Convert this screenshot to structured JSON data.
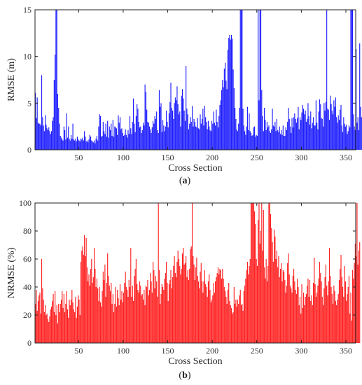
{
  "chart_data": [
    {
      "type": "bar",
      "panel_label": "(a)",
      "xlabel": "Cross Section",
      "ylabel": "RMSE (m)",
      "xlim": [
        1,
        360
      ],
      "ylim": [
        0,
        15
      ],
      "xticks": [
        50,
        100,
        150,
        200,
        250,
        300,
        350
      ],
      "yticks": [
        0,
        5,
        10,
        15
      ],
      "grid": false,
      "color": "#1f1fff",
      "x_start": 1,
      "values": [
        6.1,
        3.4,
        5.6,
        2.9,
        2.8,
        2.8,
        2.6,
        8.0,
        3.5,
        2.6,
        2.0,
        3.7,
        2.7,
        2.3,
        2.1,
        2.4,
        2.0,
        1.7,
        2.0,
        3.1,
        3.5,
        7.5,
        10.2,
        15.0,
        15.0,
        6.0,
        4.5,
        2.8,
        1.5,
        1.3,
        1.1,
        1.0,
        2.5,
        2.1,
        1.1,
        3.9,
        1.3,
        2.5,
        1.2,
        1.0,
        1.6,
        1.2,
        2.8,
        1.1,
        1.0,
        1.2,
        0.9,
        1.4,
        1.1,
        1.0,
        0.9,
        1.2,
        1.1,
        1.3,
        1.0,
        2.0,
        1.4,
        0.9,
        1.0,
        0.8,
        1.1,
        1.6,
        1.4,
        1.0,
        0.9,
        0.8,
        1.0,
        0.7,
        1.2,
        1.5,
        1.0,
        2.5,
        3.8,
        3.6,
        1.4,
        1.5,
        3.0,
        2.0,
        1.7,
        2.8,
        1.4,
        3.1,
        1.3,
        2.5,
        2.1,
        2.8,
        1.5,
        3.2,
        1.4,
        2.5,
        2.4,
        2.3,
        1.6,
        3.7,
        2.9,
        3.5,
        2.2,
        2.3,
        1.8,
        1.5,
        1.6,
        2.2,
        1.6,
        1.3,
        2.1,
        1.7,
        3.6,
        2.3,
        1.7,
        3.0,
        5.5,
        2.8,
        1.9,
        3.6,
        4.9,
        4.4,
        3.0,
        2.4,
        2.5,
        1.8,
        2.1,
        2.9,
        2.6,
        7.0,
        6.2,
        4.3,
        3.0,
        2.9,
        2.5,
        2.2,
        1.8,
        2.4,
        3.1,
        2.8,
        3.6,
        3.3,
        4.1,
        2.1,
        1.8,
        6.4,
        4.6,
        5.0,
        1.9,
        3.2,
        2.6,
        2.0,
        2.5,
        4.2,
        3.0,
        2.4,
        3.9,
        5.1,
        7.2,
        4.5,
        4.2,
        3.3,
        5.0,
        5.6,
        5.3,
        6.8,
        4.9,
        3.8,
        4.1,
        2.5,
        5.8,
        6.5,
        5.5,
        4.2,
        3.1,
        9.0,
        4.4,
        3.8,
        2.2,
        2.8,
        3.5,
        3.0,
        4.7,
        2.5,
        3.3,
        3.0,
        2.5,
        2.4,
        3.4,
        2.3,
        2.2,
        3.8,
        2.8,
        3.3,
        4.4,
        2.6,
        4.7,
        3.5,
        3.0,
        2.2,
        3.1,
        2.5,
        2.1,
        2.0,
        3.1,
        2.8,
        4.1,
        2.9,
        2.6,
        4.3,
        3.0,
        2.4,
        3.6,
        4.8,
        5.3,
        6.4,
        7.5,
        6.7,
        8.7,
        9.3,
        7.4,
        6.5,
        10.7,
        12.0,
        12.3,
        11.8,
        12.3,
        11.9,
        8.6,
        6.6,
        4.5,
        3.3,
        2.2,
        2.0,
        2.8,
        4.5,
        15.0,
        15.0,
        15.0,
        4.4,
        2.6,
        2.0,
        1.6,
        2.5,
        4.6,
        2.1,
        3.9,
        2.0,
        1.8,
        1.5,
        1.6,
        2.4,
        2.5,
        1.4,
        1.6,
        1.5,
        15.0,
        5.3,
        15.0,
        15.0,
        6.4,
        3.6,
        2.0,
        4.5,
        3.2,
        2.1,
        3.0,
        2.4,
        2.6,
        2.0,
        1.8,
        2.2,
        4.4,
        2.6,
        2.5,
        3.0,
        2.0,
        3.3,
        2.1,
        1.9,
        2.5,
        1.7,
        2.1,
        1.6,
        2.6,
        1.5,
        1.5,
        2.4,
        2.1,
        3.0,
        4.5,
        3.3,
        2.5,
        1.8,
        3.4,
        2.4,
        3.5,
        3.9,
        3.3,
        2.9,
        3.4,
        4.6,
        2.2,
        3.5,
        3.2,
        4.0,
        4.8,
        4.4,
        3.8,
        4.2,
        3.0,
        3.3,
        5.0,
        3.6,
        2.7,
        4.1,
        2.3,
        2.9,
        3.5,
        2.6,
        2.6,
        5.3,
        2.9,
        2.2,
        4.1,
        5.4,
        4.9,
        3.4,
        3.3,
        2.5,
        5.0,
        4.2,
        5.1,
        15.0,
        4.4,
        4.3,
        3.2,
        5.8,
        4.9,
        4.2,
        3.8,
        5.3,
        4.6,
        5.6,
        3.5,
        2.9,
        3.7,
        3.2,
        4.3,
        4.8,
        2.6,
        1.9,
        3.5,
        2.8,
        2.5,
        2.7,
        1.7,
        2.0,
        2.6,
        2.4,
        15.0,
        15.0,
        15.0,
        3.8,
        2.5,
        2.1,
        10.8,
        2.9,
        3.5,
        2.1,
        11.4,
        4.6,
        3.5,
        3.0,
        2.9,
        3.6
      ]
    },
    {
      "type": "bar",
      "panel_label": "(b)",
      "xlabel": "Cross Section",
      "ylabel": "NRMSE (%)",
      "xlim": [
        1,
        360
      ],
      "ylim": [
        0,
        100
      ],
      "xticks": [
        50,
        100,
        150,
        200,
        250,
        300,
        350
      ],
      "yticks": [
        0,
        20,
        40,
        60,
        80,
        100
      ],
      "grid": false,
      "color": "#ff2222",
      "x_start": 1,
      "values": [
        28,
        38,
        23,
        30,
        34,
        36,
        21,
        60,
        39,
        31,
        22,
        27,
        20,
        21,
        17,
        15,
        19,
        24,
        26,
        30,
        35,
        22,
        37,
        20,
        27,
        14,
        28,
        22,
        28,
        31,
        37,
        25,
        35,
        22,
        28,
        37,
        24,
        18,
        31,
        27,
        31,
        38,
        29,
        24,
        22,
        33,
        18,
        26,
        34,
        31,
        20,
        58,
        66,
        69,
        63,
        77,
        62,
        75,
        54,
        44,
        49,
        41,
        53,
        60,
        43,
        47,
        68,
        53,
        40,
        46,
        39,
        30,
        40,
        29,
        26,
        37,
        51,
        45,
        56,
        33,
        43,
        64,
        48,
        41,
        37,
        43,
        28,
        35,
        22,
        28,
        40,
        26,
        38,
        32,
        27,
        42,
        31,
        37,
        29,
        36,
        43,
        51,
        40,
        38,
        33,
        45,
        40,
        68,
        33,
        41,
        30,
        48,
        53,
        60,
        42,
        38,
        36,
        44,
        41,
        34,
        35,
        31,
        38,
        27,
        41,
        40,
        45,
        34,
        38,
        50,
        44,
        36,
        58,
        52,
        39,
        48,
        44,
        33,
        100,
        52,
        28,
        35,
        42,
        40,
        38,
        46,
        50,
        58,
        43,
        30,
        42,
        45,
        52,
        39,
        47,
        55,
        62,
        50,
        47,
        58,
        66,
        60,
        55,
        49,
        53,
        64,
        68,
        56,
        57,
        62,
        47,
        52,
        45,
        53,
        67,
        69,
        100,
        62,
        56,
        45,
        54,
        61,
        48,
        44,
        39,
        51,
        57,
        44,
        36,
        44,
        52,
        42,
        40,
        33,
        44,
        49,
        38,
        29,
        31,
        34,
        43,
        36,
        44,
        47,
        50,
        54,
        49,
        53,
        52,
        46,
        53,
        46,
        40,
        37,
        33,
        28,
        38,
        43,
        30,
        27,
        25,
        21,
        22,
        40,
        28,
        31,
        26,
        31,
        28,
        34,
        38,
        27,
        28,
        23,
        37,
        41,
        46,
        52,
        58,
        49,
        55,
        60,
        100,
        100,
        100,
        100,
        94,
        85,
        60,
        55,
        88,
        100,
        71,
        80,
        100,
        66,
        95,
        54,
        46,
        60,
        44,
        55,
        100,
        100,
        92,
        82,
        72,
        58,
        81,
        76,
        60,
        66,
        54,
        62,
        47,
        53,
        57,
        44,
        52,
        51,
        45,
        36,
        41,
        57,
        64,
        49,
        41,
        39,
        36,
        48,
        53,
        44,
        38,
        35,
        46,
        40,
        27,
        33,
        21,
        42,
        25,
        36,
        27,
        33,
        35,
        41,
        46,
        33,
        45,
        30,
        34,
        27,
        43,
        61,
        42,
        33,
        36,
        41,
        46,
        58,
        50,
        44,
        33,
        27,
        39,
        47,
        56,
        41,
        34,
        44,
        68,
        48,
        40,
        35,
        28,
        41,
        37,
        30,
        27,
        31,
        35,
        45,
        53,
        63,
        47,
        40,
        33,
        55,
        44,
        30,
        35,
        40,
        48,
        21,
        36,
        16,
        52,
        46,
        57,
        71,
        62,
        100,
        56,
        66,
        72
      ]
    }
  ]
}
